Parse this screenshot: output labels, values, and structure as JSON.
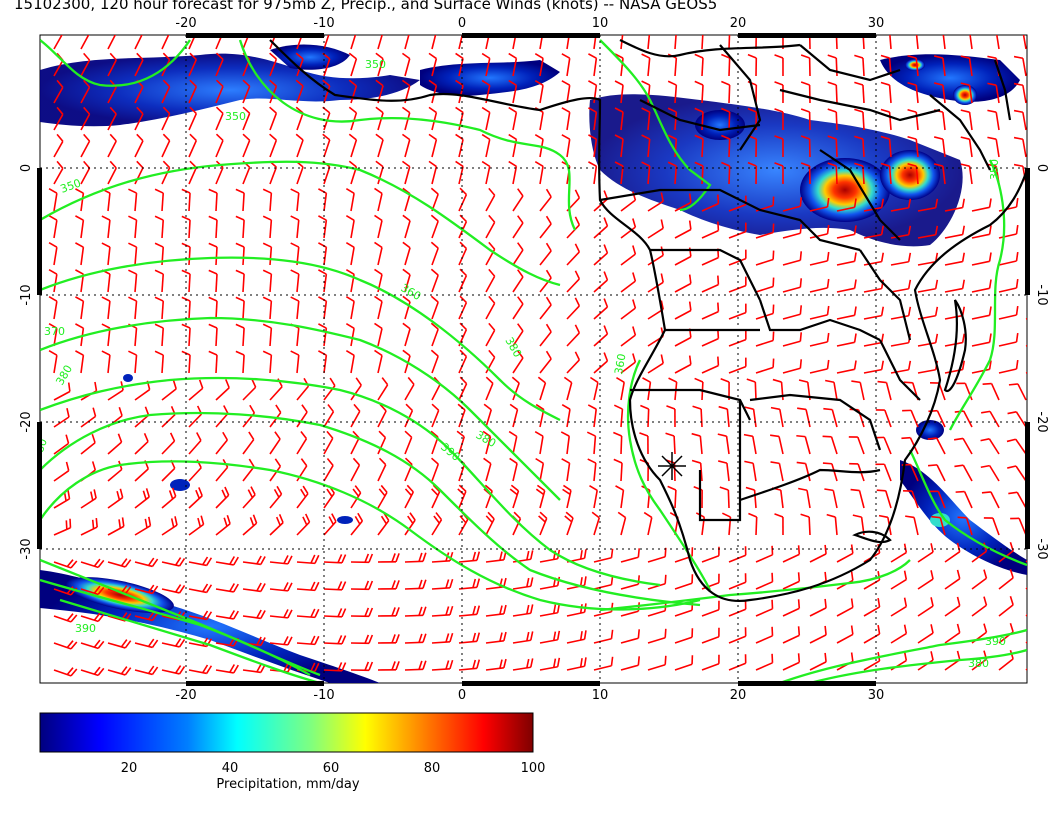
{
  "title": "15102300, 120 hour forecast for 975mb Z, Precip., and Surface Winds (knots) -- NASA GEOS5",
  "map": {
    "lon_ticks": [
      "-20",
      "-10",
      "0",
      "10",
      "20",
      "30"
    ],
    "lat_ticks": [
      "0",
      "-10",
      "-20",
      "-30"
    ],
    "lon_range": [
      -31,
      41
    ],
    "lat_range": [
      -41,
      11
    ],
    "contour_labels": [
      "350",
      "350",
      "350",
      "360",
      "370",
      "380",
      "380",
      "380",
      "380",
      "390",
      "390",
      "390",
      "380",
      "360",
      "350"
    ],
    "colors": {
      "wind_barbs": "#ff0000",
      "contours": "#22ee22",
      "coastlines": "#000000"
    },
    "location_marker": "star-icon"
  },
  "colorbar": {
    "label": "Precipitation, mm/day",
    "ticks": [
      "20",
      "40",
      "60",
      "80",
      "100"
    ],
    "range": [
      0,
      100
    ],
    "colormap": [
      "#00007f",
      "#0000ff",
      "#007fff",
      "#00ffff",
      "#7fff7f",
      "#ffff00",
      "#ff7f00",
      "#ff0000",
      "#7f0000"
    ]
  }
}
